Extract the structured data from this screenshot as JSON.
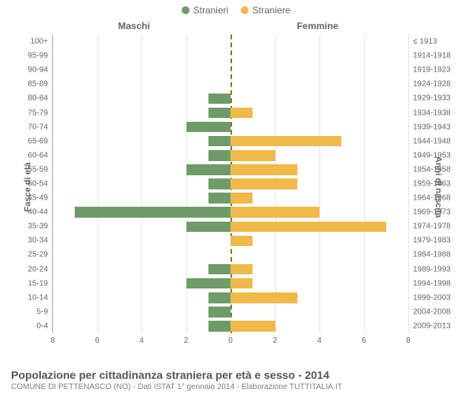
{
  "legend": {
    "items": [
      {
        "label": "Stranieri",
        "color": "#6f9b69"
      },
      {
        "label": "Straniere",
        "color": "#f1b94a"
      }
    ]
  },
  "chart": {
    "type": "population-pyramid",
    "left_header": "Maschi",
    "right_header": "Femmine",
    "left_axis_title": "Fasce di età",
    "right_axis_title": "Anni di nascita",
    "x_max": 8,
    "x_ticks": [
      0,
      2,
      4,
      6,
      8
    ],
    "male_color": "#6f9b69",
    "female_color": "#f1b94a",
    "background_color": "#ffffff",
    "grid_color": "#e5e5e5",
    "center_line_color": "#7b7b2b",
    "text_color": "#666666",
    "bar_height_ratio": 0.75,
    "label_fontsize": 10,
    "header_fontsize": 12,
    "rows": [
      {
        "age": "100+",
        "year": "≤ 1913",
        "m": 0,
        "f": 0
      },
      {
        "age": "95-99",
        "year": "1914-1918",
        "m": 0,
        "f": 0
      },
      {
        "age": "90-94",
        "year": "1919-1923",
        "m": 0,
        "f": 0
      },
      {
        "age": "85-89",
        "year": "1924-1928",
        "m": 0,
        "f": 0
      },
      {
        "age": "80-84",
        "year": "1929-1933",
        "m": 1,
        "f": 0
      },
      {
        "age": "75-79",
        "year": "1934-1938",
        "m": 1,
        "f": 1
      },
      {
        "age": "70-74",
        "year": "1939-1943",
        "m": 2,
        "f": 0
      },
      {
        "age": "65-69",
        "year": "1944-1948",
        "m": 1,
        "f": 5
      },
      {
        "age": "60-64",
        "year": "1949-1953",
        "m": 1,
        "f": 2
      },
      {
        "age": "55-59",
        "year": "1954-1958",
        "m": 2,
        "f": 3
      },
      {
        "age": "50-54",
        "year": "1959-1963",
        "m": 1,
        "f": 3
      },
      {
        "age": "45-49",
        "year": "1964-1968",
        "m": 1,
        "f": 1
      },
      {
        "age": "40-44",
        "year": "1969-1973",
        "m": 7,
        "f": 4
      },
      {
        "age": "35-39",
        "year": "1974-1978",
        "m": 2,
        "f": 7
      },
      {
        "age": "30-34",
        "year": "1979-1983",
        "m": 0,
        "f": 1
      },
      {
        "age": "25-29",
        "year": "1984-1988",
        "m": 0,
        "f": 0
      },
      {
        "age": "20-24",
        "year": "1989-1993",
        "m": 1,
        "f": 1
      },
      {
        "age": "15-19",
        "year": "1994-1998",
        "m": 2,
        "f": 1
      },
      {
        "age": "10-14",
        "year": "1999-2003",
        "m": 1,
        "f": 3
      },
      {
        "age": "5-9",
        "year": "2004-2008",
        "m": 1,
        "f": 0
      },
      {
        "age": "0-4",
        "year": "2009-2013",
        "m": 1,
        "f": 2
      }
    ]
  },
  "caption": {
    "title": "Popolazione per cittadinanza straniera per età e sesso - 2014",
    "subtitle": "COMUNE DI PETTENASCO (NO) - Dati ISTAT 1° gennaio 2014 - Elaborazione TUTTITALIA.IT"
  }
}
